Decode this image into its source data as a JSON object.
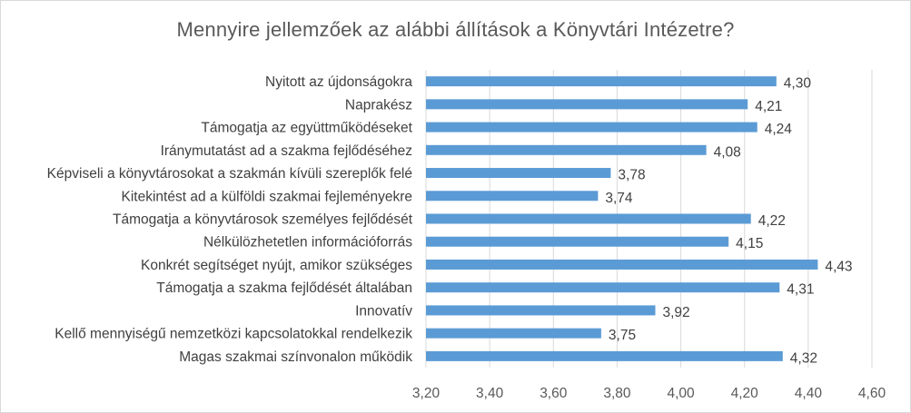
{
  "chart_data": {
    "type": "bar",
    "orientation": "horizontal",
    "title": "Mennyire jellemzőek az alábbi állítások a Könyvtári Intézetre?",
    "categories": [
      "Nyitott az újdonságokra",
      "Naprakész",
      "Támogatja az együttműködéseket",
      "Iránymutatást ad a szakma fejlődéséhez",
      "Képviseli a könyvtárosokat a szakmán kívüli szereplők felé",
      "Kitekintést ad a külföldi szakmai fejleményekre",
      "Támogatja a könyvtárosok személyes fejlődését",
      "Nélkülözhetetlen információforrás",
      "Konkrét segítséget nyújt, amikor szükséges",
      "Támogatja a szakma fejlődését általában",
      "Innovatív",
      "Kellő mennyiségű nemzetközi kapcsolatokkal rendelkezik",
      "Magas szakmai színvonalon működik"
    ],
    "values": [
      4.3,
      4.21,
      4.24,
      4.08,
      3.78,
      3.74,
      4.22,
      4.15,
      4.43,
      4.31,
      3.92,
      3.75,
      4.32
    ],
    "value_labels": [
      "4,30",
      "4,21",
      "4,24",
      "4,08",
      "3,78",
      "3,74",
      "4,22",
      "4,15",
      "4,43",
      "4,31",
      "3,92",
      "3,75",
      "4,32"
    ],
    "x_ticks": [
      "3,20",
      "3,40",
      "3,60",
      "3,80",
      "4,00",
      "4,20",
      "4,40",
      "4,60"
    ],
    "xlim": [
      3.2,
      4.6
    ],
    "x_tick_step": 0.2,
    "xlabel": "",
    "ylabel": "",
    "grid": "vertical",
    "legend": "none",
    "bar_color": "#5b9bd5",
    "grid_color": "#d9d9d9"
  }
}
